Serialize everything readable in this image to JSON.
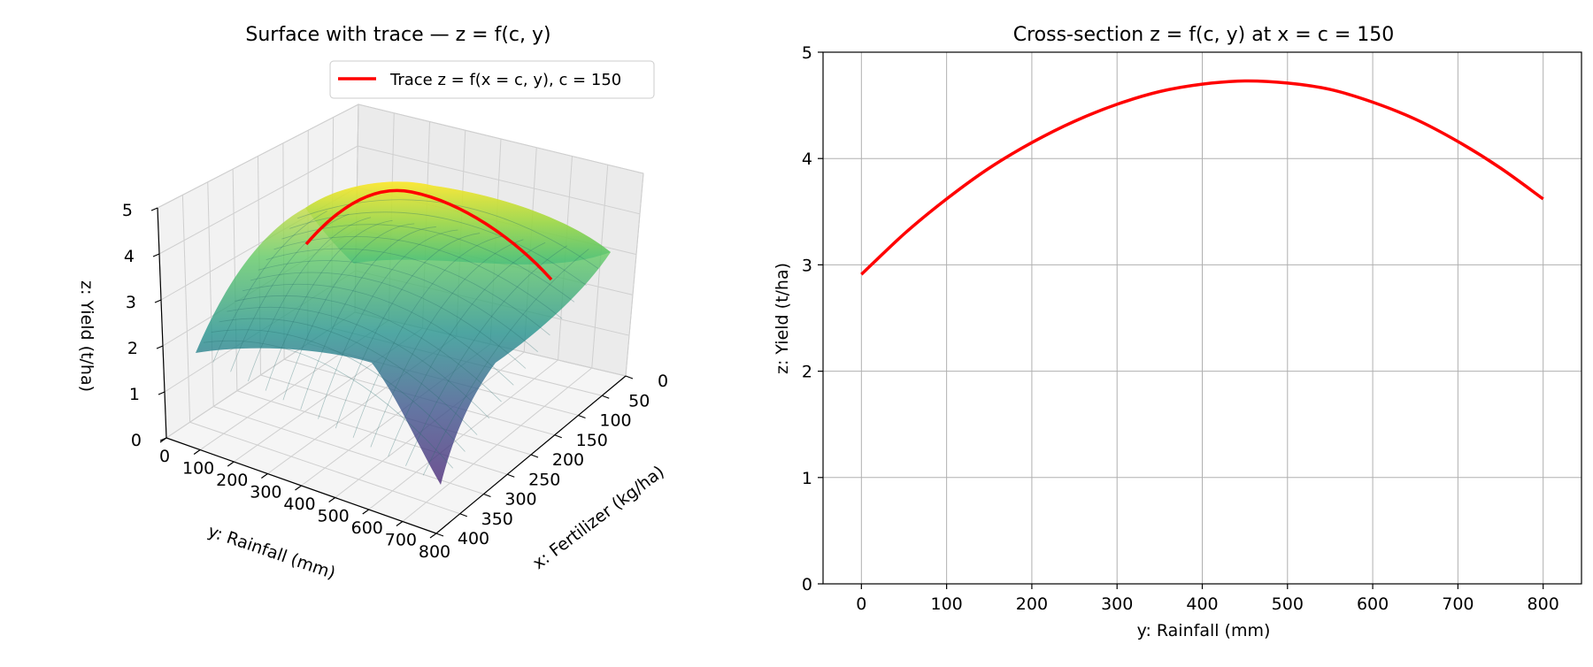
{
  "figure": {
    "left_title": "Surface with trace  —  z = f(c, y)",
    "right_title": "Cross-section z = f(c, y) at x = c = 150"
  },
  "legend": {
    "entry": "Trace z = f(x = c, y), c = 150",
    "color": "#ff0000",
    "placement": "upper-right of 3D panel"
  },
  "colors": {
    "trace": "#ff0000",
    "grid": "#b0b0b0",
    "pane": "#f2f2f2",
    "colormap": "viridis"
  },
  "chart_data": [
    {
      "type": "surface3d",
      "title": "Surface with trace  —  z = f(c, y)",
      "xlabel": "x: Fertilizer (kg/ha)",
      "ylabel": "y: Rainfall (mm)",
      "zlabel": "z: Yield (t/ha)",
      "x_ticks": [
        "0",
        "50",
        "100",
        "150",
        "200",
        "250",
        "300",
        "350",
        "400"
      ],
      "y_ticks": [
        "0",
        "100",
        "200",
        "300",
        "400",
        "500",
        "600",
        "700",
        "800"
      ],
      "z_ticks": [
        "0",
        "1",
        "2",
        "3",
        "4",
        "5"
      ],
      "xlim": [
        0,
        400
      ],
      "ylim": [
        0,
        800
      ],
      "zlim": [
        0,
        5
      ],
      "grid": true,
      "surface_samples": {
        "note_values": "yield at selected (x, y) points",
        "points": [
          {
            "x": 0,
            "y": 0,
            "z": 1.9
          },
          {
            "x": 0,
            "y": 400,
            "z": 3.6
          },
          {
            "x": 0,
            "y": 800,
            "z": 2.9
          },
          {
            "x": 150,
            "y": 0,
            "z": 2.9
          },
          {
            "x": 150,
            "y": 450,
            "z": 4.73
          },
          {
            "x": 150,
            "y": 800,
            "z": 3.62
          },
          {
            "x": 400,
            "y": 0,
            "z": 1.0
          },
          {
            "x": 400,
            "y": 400,
            "z": 3.1
          },
          {
            "x": 400,
            "y": 800,
            "z": 0.5
          }
        ]
      },
      "trace": {
        "name": "Trace z = f(x = c, y), c = 150",
        "x": 150,
        "y": [
          0,
          100,
          200,
          300,
          400,
          450,
          500,
          600,
          700,
          800
        ],
        "z": [
          2.91,
          3.62,
          4.15,
          4.51,
          4.7,
          4.73,
          4.71,
          4.53,
          4.16,
          3.62
        ]
      }
    },
    {
      "type": "line",
      "title": "Cross-section z = f(c, y) at x = c = 150",
      "xlabel": "y: Rainfall (mm)",
      "ylabel": "z: Yield (t/ha)",
      "x_ticks": [
        "0",
        "100",
        "200",
        "300",
        "400",
        "500",
        "600",
        "700",
        "800"
      ],
      "y_ticks": [
        "0",
        "1",
        "2",
        "3",
        "4",
        "5"
      ],
      "xlim": [
        -45,
        845
      ],
      "ylim": [
        0,
        5
      ],
      "grid": true,
      "series": [
        {
          "x": [
            0,
            50,
            100,
            150,
            200,
            250,
            300,
            350,
            400,
            450,
            500,
            550,
            600,
            650,
            700,
            750,
            800
          ],
          "y": [
            2.91,
            3.29,
            3.62,
            3.91,
            4.15,
            4.35,
            4.51,
            4.63,
            4.7,
            4.73,
            4.71,
            4.65,
            4.53,
            4.37,
            4.16,
            3.91,
            3.62
          ],
          "color": "#ff0000"
        }
      ]
    }
  ]
}
